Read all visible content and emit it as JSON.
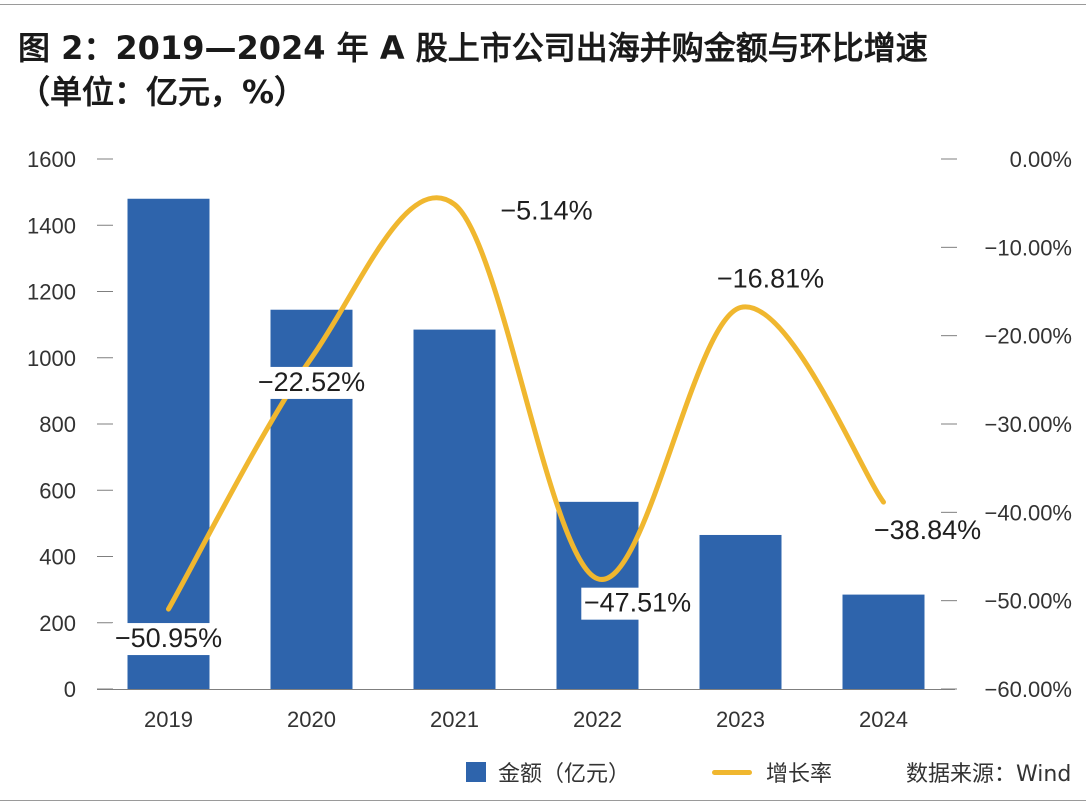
{
  "title": {
    "line1": "图 2：2019—2024 年 A 股上市公司出海并购金额与环比增速",
    "line2": "（单位：亿元，%）"
  },
  "chart_data": {
    "type": "bar+line",
    "categories": [
      "2019",
      "2020",
      "2021",
      "2022",
      "2023",
      "2024"
    ],
    "series": [
      {
        "name": "金额（亿元）",
        "type": "bar",
        "axis": "left",
        "color": "#2e64ac",
        "values": [
          1480,
          1145,
          1085,
          565,
          465,
          285
        ]
      },
      {
        "name": "增长率",
        "type": "line",
        "axis": "right",
        "color": "#f0b72f",
        "values": [
          -50.95,
          -22.52,
          -5.14,
          -47.51,
          -16.81,
          -38.84
        ],
        "labels": [
          "−50.95%",
          "−22.52%",
          "−5.14%",
          "−47.51%",
          "−16.81%",
          "−38.84%"
        ]
      }
    ],
    "y_left": {
      "min": 0,
      "max": 1600,
      "ticks": [
        "0",
        "200",
        "400",
        "600",
        "800",
        "1000",
        "1200",
        "1400",
        "1600"
      ]
    },
    "y_right": {
      "min": -60,
      "max": 0,
      "ticks": [
        "−60.00%",
        "−50.00%",
        "−40.00%",
        "−30.00%",
        "−20.00%",
        "−10.00%",
        "0.00%"
      ]
    },
    "grid": false,
    "legend_position": "bottom-right"
  },
  "legend": {
    "bar_label": "金额（亿元）",
    "line_label": "增长率"
  },
  "source": "数据来源：Wind",
  "colors": {
    "bar": "#2e64ac",
    "line": "#f0b72f",
    "axis": "#7f7f7f",
    "text": "#333333"
  }
}
